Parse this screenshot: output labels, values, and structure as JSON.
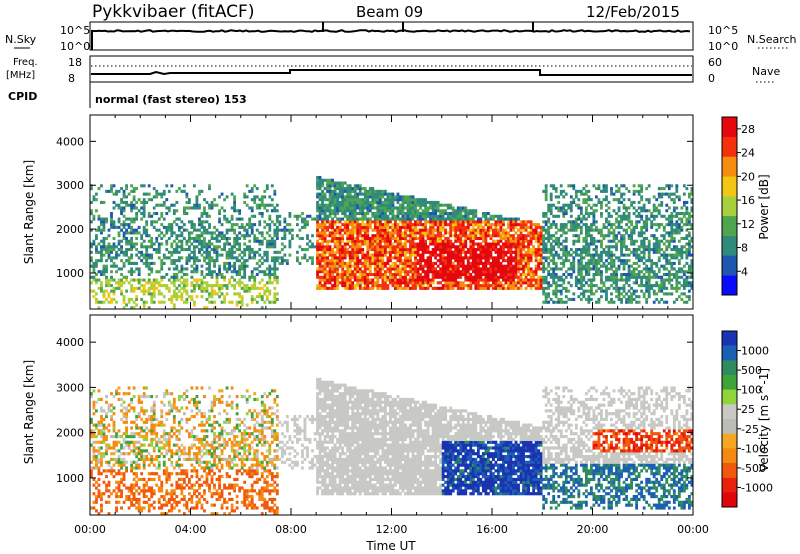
{
  "header": {
    "station": "Pykkvibaer (fitACF)",
    "beam": "Beam 09",
    "date": "12/Feb/2015"
  },
  "noise_panel": {
    "left_label": "N.Sky",
    "left_ticks": [
      "10^5",
      "10^0"
    ],
    "right_ticks": [
      "10^5",
      "10^0"
    ],
    "right_label": "N.Search"
  },
  "freq_panel": {
    "left_label_1": "Freq.",
    "left_label_2": "[MHz]",
    "left_ticks": [
      "18",
      "8"
    ],
    "right_ticks": [
      "60",
      "0"
    ],
    "right_label": "Nave",
    "cpid_label": "CPID",
    "mode_text": "normal (fast stereo) 153"
  },
  "chart_data": [
    {
      "type": "heatmap",
      "title": "",
      "ylabel": "Slant Range [km]",
      "xlabel": "",
      "yticks": [
        "1000",
        "2000",
        "3000",
        "4000"
      ],
      "ylim": [
        180,
        4600
      ],
      "xlim": [
        0,
        24
      ],
      "colorbar": {
        "label": "Power [dB]",
        "ticks": [
          "4",
          "8",
          "12",
          "16",
          "20",
          "24",
          "28"
        ],
        "range": [
          0,
          30
        ],
        "colors": [
          "#0a0aff",
          "#1f56b0",
          "#2f8a7c",
          "#4fa54e",
          "#a7d03a",
          "#f3c515",
          "#f58d0f",
          "#f4300e",
          "#e4070e"
        ]
      }
    },
    {
      "type": "heatmap",
      "title": "",
      "ylabel": "Slant Range [km]",
      "xlabel": "Time UT",
      "xticks": [
        "00:00",
        "04:00",
        "08:00",
        "12:00",
        "16:00",
        "20:00",
        "00:00"
      ],
      "yticks": [
        "1000",
        "2000",
        "3000",
        "4000"
      ],
      "ylim": [
        180,
        4600
      ],
      "xlim": [
        0,
        24
      ],
      "colorbar": {
        "label": "Velocity [m s^-1]",
        "ticks": [
          "1000",
          "500",
          "100",
          "25",
          "-25",
          "-100",
          "-500",
          "-1000"
        ],
        "range": [
          -1000,
          1000
        ],
        "colors": [
          "#1a33b0",
          "#1a5fb4",
          "#2e8a5f",
          "#3fa33c",
          "#8fd43a",
          "#c8c8c4",
          "#bdbdb8",
          "#f5a623",
          "#f58a12",
          "#f0590d",
          "#e8200c",
          "#e0050a"
        ]
      }
    }
  ]
}
